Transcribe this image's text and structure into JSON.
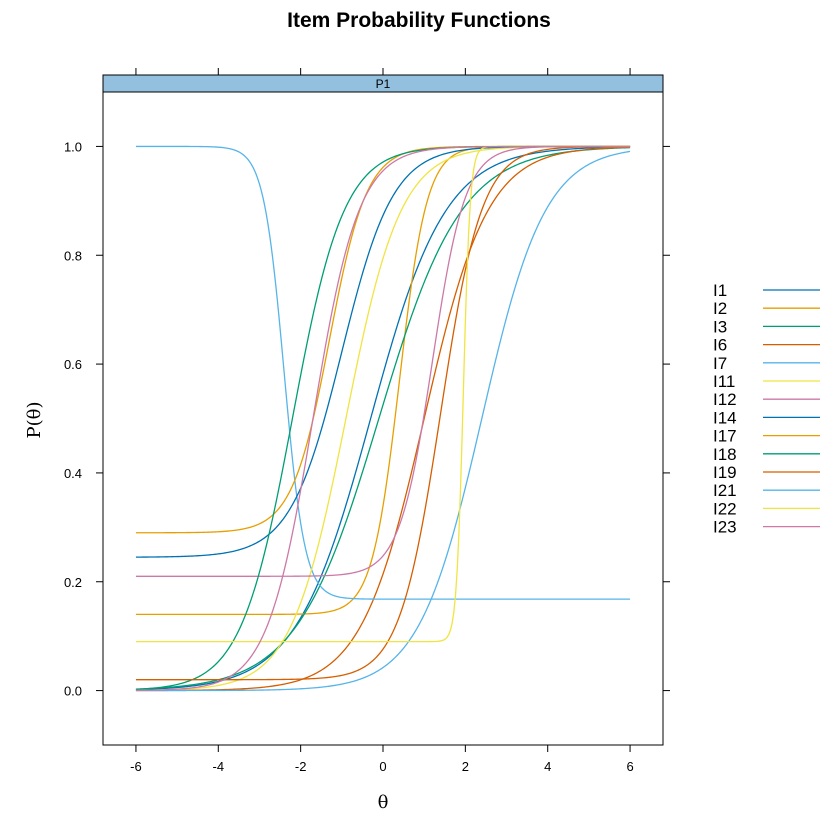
{
  "chart_data": {
    "type": "line",
    "title": "Item Probability Functions",
    "panel": "P1",
    "xlabel": "θ",
    "ylabel": "P(θ)",
    "xlim": [
      -6.8,
      6.8
    ],
    "ylim": [
      -0.1,
      1.1
    ],
    "xticks": [
      -6,
      -4,
      -2,
      0,
      2,
      4,
      6
    ],
    "yticks": [
      0.0,
      0.2,
      0.4,
      0.6,
      0.8,
      1.0
    ],
    "xtick_labels": [
      "-6",
      "-4",
      "-2",
      "0",
      "2",
      "4",
      "6"
    ],
    "ytick_labels": [
      "0.0",
      "0.2",
      "0.4",
      "0.6",
      "0.8",
      "1.0"
    ],
    "grid": false,
    "legend_position": "right",
    "x_range": [
      -6,
      6
    ],
    "series": [
      {
        "name": "I1",
        "color": "#0072B2",
        "a": 1.1,
        "b": -0.3,
        "c": 0.0,
        "d": 1.0
      },
      {
        "name": "I2",
        "color": "#E69F00",
        "a": 3.0,
        "b": 0.4,
        "c": 0.14,
        "d": 1.0
      },
      {
        "name": "I3",
        "color": "#009E73",
        "a": 1.0,
        "b": -0.1,
        "c": 0.0,
        "d": 1.0
      },
      {
        "name": "I6",
        "color": "#D55E00",
        "a": 1.3,
        "b": 1.0,
        "c": 0.0,
        "d": 1.0
      },
      {
        "name": "I7",
        "color": "#56B4E9",
        "a": 4.0,
        "b": -2.4,
        "c": 1.0,
        "d": 0.168
      },
      {
        "name": "I11",
        "color": "#F0E442",
        "a": 1.5,
        "b": -0.9,
        "c": 0.0,
        "d": 1.0
      },
      {
        "name": "I12",
        "color": "#CC79A7",
        "a": 2.5,
        "b": 1.2,
        "c": 0.21,
        "d": 1.0
      },
      {
        "name": "I14",
        "color": "#0072B2",
        "a": 1.6,
        "b": -1.0,
        "c": 0.245,
        "d": 1.0
      },
      {
        "name": "I17",
        "color": "#E69F00",
        "a": 2.2,
        "b": -1.3,
        "c": 0.29,
        "d": 1.0
      },
      {
        "name": "I18",
        "color": "#009E73",
        "a": 1.6,
        "b": -2.2,
        "c": 0.0,
        "d": 1.0
      },
      {
        "name": "I19",
        "color": "#D55E00",
        "a": 2.0,
        "b": 1.4,
        "c": 0.02,
        "d": 1.0
      },
      {
        "name": "I21",
        "color": "#56B4E9",
        "a": 1.3,
        "b": 2.4,
        "c": 0.0,
        "d": 1.0
      },
      {
        "name": "I22",
        "color": "#F0E442",
        "a": 12.0,
        "b": 1.95,
        "c": 0.09,
        "d": 1.0
      },
      {
        "name": "I23",
        "color": "#CC79A7",
        "a": 1.8,
        "b": -1.7,
        "c": 0.0,
        "d": 1.0
      }
    ]
  },
  "colors": {
    "strip_fill": "#93c0de",
    "frame": "#000000"
  }
}
